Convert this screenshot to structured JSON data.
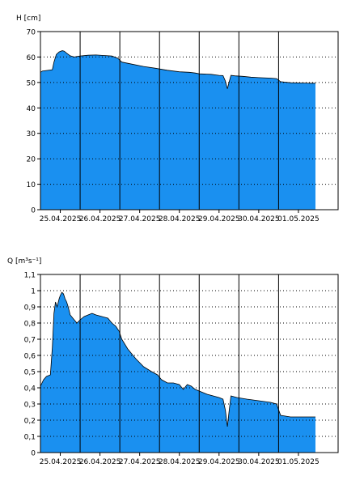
{
  "colors": {
    "fill": "#1a90f0",
    "outline": "#000000",
    "grid": "#000000",
    "background": "#ffffff"
  },
  "chart_data": [
    {
      "type": "area",
      "ylabel": "H [cm]",
      "ylim": [
        0,
        70
      ],
      "yticks": [
        0,
        10,
        20,
        30,
        40,
        50,
        60,
        70
      ],
      "ytick_labels": [
        "0",
        "10",
        "20",
        "30",
        "40",
        "50",
        "60",
        "70"
      ],
      "xlim": [
        0,
        7.5
      ],
      "x_ticks": [
        0.5,
        1.5,
        2.5,
        3.5,
        4.5,
        5.5,
        6.5
      ],
      "x_tick_labels": [
        "25.04.2025",
        "26.04.2025",
        "27.04.2025",
        "28.04.2025",
        "29.04.2025",
        "30.04.2025",
        "01.05.2025"
      ],
      "day_lines": [
        1,
        2,
        3,
        4,
        5,
        6
      ],
      "grid": "dotted horizontal, solid vertical at day boundaries",
      "series": [
        {
          "x": [
            0,
            0.05,
            0.3,
            0.34,
            0.4,
            0.47,
            0.55,
            0.6,
            0.66,
            0.75,
            0.85,
            0.92,
            1.0,
            1.2,
            1.4,
            1.6,
            1.8,
            1.95,
            2.05,
            2.3,
            2.6,
            2.9,
            3.0,
            3.2,
            3.5,
            3.75,
            3.9,
            4.0,
            4.3,
            4.5,
            4.6,
            4.66,
            4.71,
            4.75,
            4.8,
            4.9,
            5.1,
            5.3,
            5.5,
            5.8,
            5.95,
            6.05,
            6.3,
            6.6,
            6.8,
            6.93
          ],
          "y": [
            54,
            54.5,
            55,
            58,
            61,
            62,
            62.5,
            62.3,
            61.5,
            60.5,
            60,
            60.2,
            60.4,
            60.7,
            60.8,
            60.6,
            60.4,
            59.5,
            58,
            57.2,
            56.3,
            55.6,
            55.3,
            54.8,
            54.2,
            54,
            53.7,
            53.4,
            53.2,
            52.8,
            52.7,
            50.5,
            47.5,
            50,
            52.8,
            52.6,
            52.4,
            52.1,
            51.9,
            51.7,
            51.5,
            50.3,
            49.9,
            49.8,
            49.7,
            49.7
          ]
        }
      ]
    },
    {
      "type": "area",
      "ylabel": "Q [m³s⁻¹]",
      "ylim": [
        0,
        1.1
      ],
      "yticks": [
        0,
        0.1,
        0.2,
        0.3,
        0.4,
        0.5,
        0.6,
        0.7,
        0.8,
        0.9,
        1.0,
        1.1
      ],
      "ytick_labels": [
        "0",
        "0,1",
        "0,2",
        "0,3",
        "0,4",
        "0,5",
        "0,6",
        "0,7",
        "0,8",
        "0,9",
        "1",
        "1,1"
      ],
      "xlim": [
        0,
        7.5
      ],
      "x_ticks": [
        0.5,
        1.5,
        2.5,
        3.5,
        4.5,
        5.5,
        6.5
      ],
      "x_tick_labels": [
        "25.04.2025",
        "26.04.2025",
        "27.04.2025",
        "28.04.2025",
        "29.04.2025",
        "30.04.2025",
        "01.05.2025"
      ],
      "day_lines": [
        1,
        2,
        3,
        4,
        5,
        6
      ],
      "grid": "dotted horizontal, solid vertical at day boundaries",
      "series": [
        {
          "x": [
            0,
            0.08,
            0.15,
            0.25,
            0.3,
            0.34,
            0.38,
            0.42,
            0.47,
            0.5,
            0.54,
            0.58,
            0.62,
            0.66,
            0.7,
            0.75,
            0.85,
            0.92,
            1.0,
            1.1,
            1.2,
            1.3,
            1.4,
            1.55,
            1.7,
            1.8,
            1.9,
            1.98,
            2.05,
            2.2,
            2.4,
            2.6,
            2.8,
            2.95,
            3.05,
            3.2,
            3.35,
            3.5,
            3.6,
            3.7,
            3.8,
            3.9,
            4.0,
            4.2,
            4.5,
            4.6,
            4.66,
            4.71,
            4.75,
            4.8,
            4.95,
            5.2,
            5.5,
            5.8,
            5.95,
            6.05,
            6.3,
            6.6,
            6.93
          ],
          "y": [
            0.41,
            0.45,
            0.47,
            0.48,
            0.65,
            0.86,
            0.93,
            0.9,
            0.95,
            0.97,
            0.99,
            0.98,
            0.95,
            0.93,
            0.9,
            0.85,
            0.82,
            0.8,
            0.82,
            0.84,
            0.85,
            0.86,
            0.85,
            0.84,
            0.83,
            0.8,
            0.78,
            0.75,
            0.7,
            0.64,
            0.58,
            0.53,
            0.5,
            0.48,
            0.45,
            0.43,
            0.43,
            0.42,
            0.39,
            0.42,
            0.41,
            0.39,
            0.38,
            0.36,
            0.34,
            0.33,
            0.26,
            0.16,
            0.25,
            0.35,
            0.34,
            0.33,
            0.32,
            0.31,
            0.3,
            0.23,
            0.22,
            0.22,
            0.22
          ]
        }
      ]
    }
  ]
}
